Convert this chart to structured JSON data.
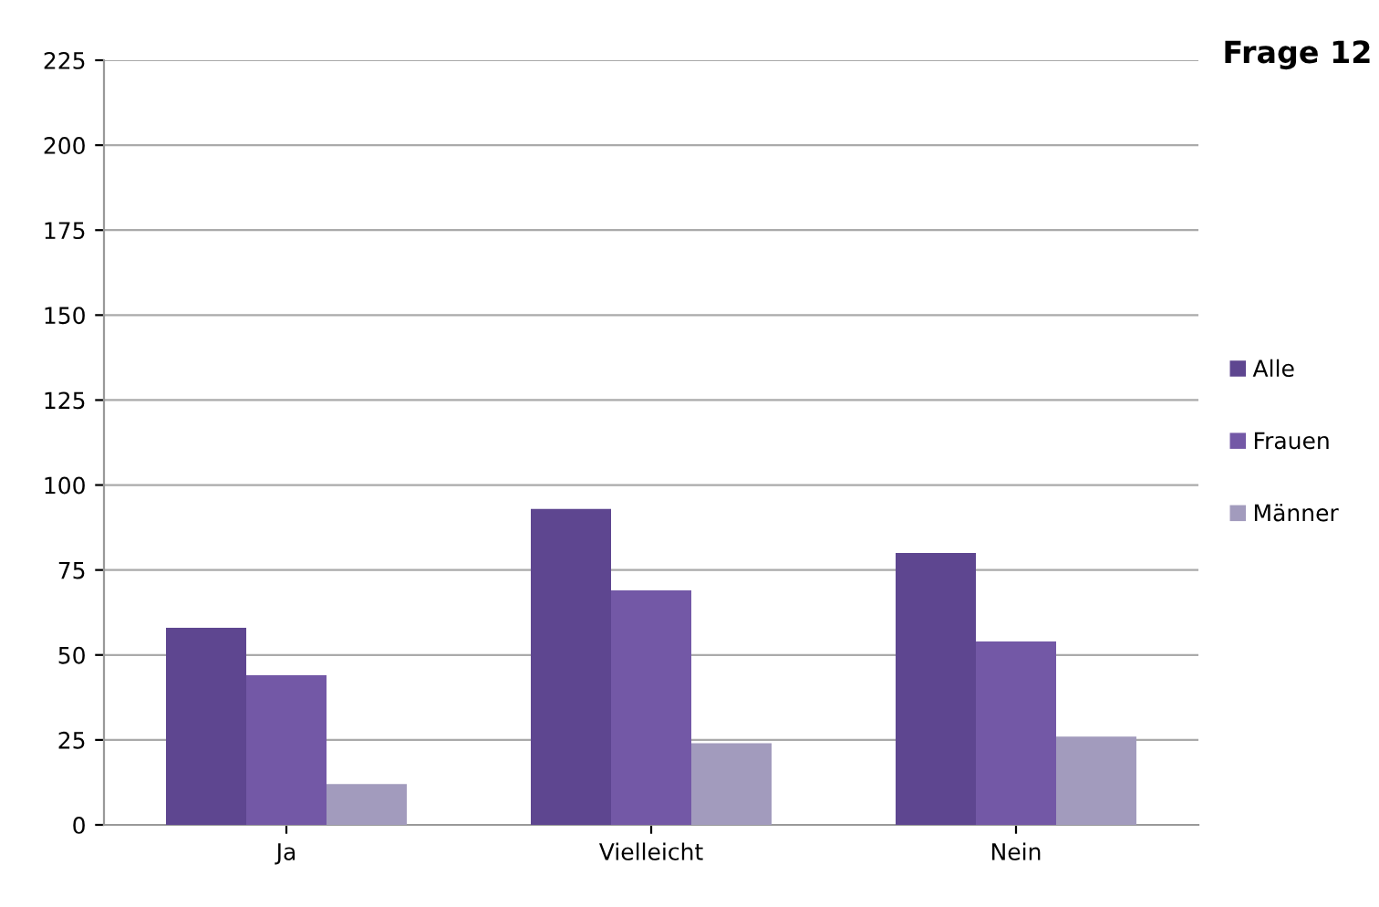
{
  "chart_data": {
    "type": "bar",
    "title": "Frage 12",
    "categories": [
      "Ja",
      "Vielleicht",
      "Nein"
    ],
    "series": [
      {
        "name": "Alle",
        "color": "#5e4690",
        "values": [
          58,
          93,
          80
        ]
      },
      {
        "name": "Frauen",
        "color": "#7358a6",
        "values": [
          44,
          69,
          54
        ]
      },
      {
        "name": "Männer",
        "color": "#a29bbd",
        "values": [
          12,
          24,
          26
        ]
      }
    ],
    "ylim": [
      0,
      225
    ],
    "yticks": [
      0,
      25,
      50,
      75,
      100,
      125,
      150,
      175,
      200,
      225
    ],
    "grid": "y",
    "legend": "right"
  }
}
